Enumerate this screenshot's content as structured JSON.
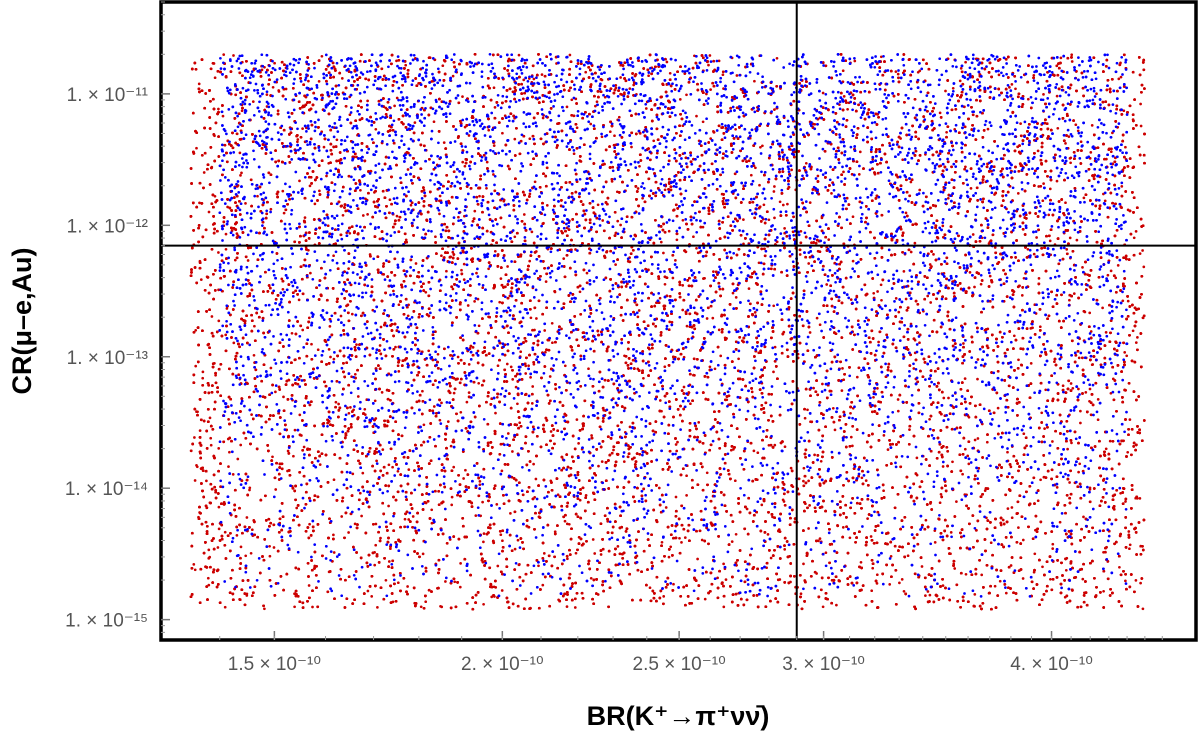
{
  "chart_data": {
    "type": "scatter",
    "title": "",
    "xlabel": "BR(K⁺→π⁺νν̄)",
    "ylabel": "CR(μ–e,Au)",
    "x_scale": "log",
    "y_scale": "log",
    "xlim": [
      1.3e-10,
      4.8e-10
    ],
    "ylim": [
      7e-16,
      5e-11
    ],
    "x_ticks": [
      {
        "value": 1.5e-10,
        "label": "1.5 × 10⁻¹⁰"
      },
      {
        "value": 2e-10,
        "label": "2. × 10⁻¹⁰"
      },
      {
        "value": 2.5e-10,
        "label": "2.5 × 10⁻¹⁰"
      },
      {
        "value": 3e-10,
        "label": "3. × 10⁻¹⁰"
      },
      {
        "value": 4e-10,
        "label": "4. × 10⁻¹⁰"
      }
    ],
    "y_ticks": [
      {
        "value": 1e-11,
        "label": "1. × 10⁻¹¹"
      },
      {
        "value": 1e-12,
        "label": "1. × 10⁻¹²"
      },
      {
        "value": 1e-13,
        "label": "1. × 10⁻¹³"
      },
      {
        "value": 1e-14,
        "label": "1. × 10⁻¹⁴"
      },
      {
        "value": 1e-15,
        "label": "1. × 10⁻¹⁵"
      }
    ],
    "reference_lines": [
      {
        "orientation": "vertical",
        "value": 2.9e-10
      },
      {
        "orientation": "horizontal",
        "value": 7e-13
      }
    ],
    "grid": false,
    "legend": "none",
    "series": [
      {
        "color": "#cc0000",
        "x_range": [
          1.35e-10,
          4.5e-10
        ],
        "y_range": [
          1.2e-15,
          2e-11
        ],
        "description_of_density": "dense red points across full range, densest at lower-left and lower-middle"
      },
      {
        "color": "#0000ff",
        "x_range": [
          1.4e-10,
          4.4e-10
        ],
        "y_range": [
          1.5e-15,
          2e-11
        ],
        "description_of_density": "blue points overlaid, concentrated at upper region (y > 1e-13) and right side"
      }
    ]
  }
}
